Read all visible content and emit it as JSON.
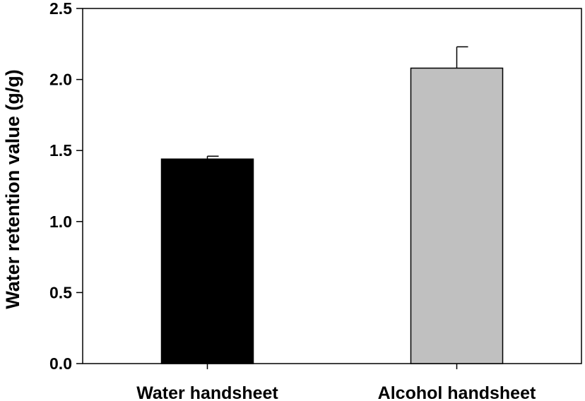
{
  "chart_data": {
    "type": "bar",
    "title": "",
    "xlabel": "",
    "ylabel": "Water retention value (g/g)",
    "categories": [
      "Water handsheet",
      "Alcohol handsheet"
    ],
    "series": [
      {
        "values": [
          1.44,
          2.08
        ],
        "errors": [
          0.02,
          0.15
        ],
        "colors": [
          "#000000",
          "#c0c0c0"
        ]
      }
    ],
    "ylim": [
      0,
      2.5
    ],
    "yticks": [
      "0.0",
      "0.5",
      "1.0",
      "1.5",
      "2.0",
      "2.5"
    ],
    "grid": false,
    "legend": "none"
  }
}
